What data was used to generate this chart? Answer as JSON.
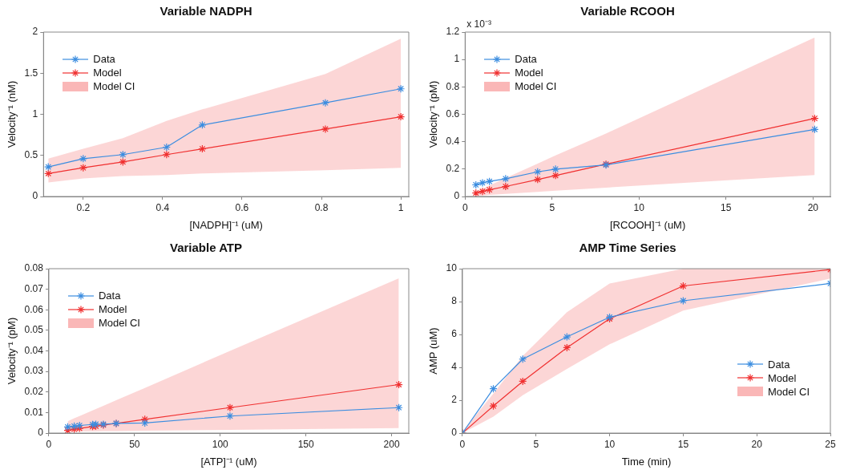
{
  "chart_data": [
    {
      "type": "line",
      "title": "Variable NADPH",
      "xlabel": "[NADPH]⁻¹ (uM)",
      "ylabel": "Velocity⁻¹ (nM)",
      "x": [
        0.112,
        0.2,
        0.3,
        0.41,
        0.5,
        0.81,
        1.0
      ],
      "xlim": [
        0.1,
        1.02
      ],
      "xticks": [
        0.2,
        0.4,
        0.6,
        0.8,
        1
      ],
      "ylim": [
        0,
        2
      ],
      "yticks": [
        0,
        0.5,
        1,
        1.5,
        2
      ],
      "legend": "top left",
      "marker": "cross",
      "annotations": [
        "Model CI"
      ],
      "series": [
        {
          "name": "Data",
          "color": "#3b8de0",
          "values": [
            0.36,
            0.46,
            0.51,
            0.6,
            0.87,
            1.14,
            1.31
          ]
        },
        {
          "name": "Model",
          "color": "#f03030",
          "values": [
            0.28,
            0.35,
            0.42,
            0.51,
            0.58,
            0.82,
            0.97
          ],
          "lower": [
            0.17,
            0.22,
            0.25,
            0.26,
            0.28,
            0.32,
            0.35
          ],
          "upper": [
            0.46,
            0.58,
            0.71,
            0.92,
            1.06,
            1.49,
            1.92
          ]
        }
      ]
    },
    {
      "type": "line",
      "title": "Variable RCOOH",
      "xlabel": "[RCOOH]⁻¹ (uM)",
      "ylabel": "Velocity⁻¹ (pM)",
      "x": [
        0.62,
        1.0,
        1.4,
        2.33,
        4.17,
        5.2,
        8.1,
        20.1
      ],
      "xlim": [
        0,
        21
      ],
      "xticks": [
        0,
        5,
        10,
        15,
        20
      ],
      "ylim": [
        0,
        1.2
      ],
      "yticks": [
        0,
        0.2,
        0.4,
        0.6,
        0.8,
        1,
        1.2
      ],
      "legend": "top left",
      "marker": "cross",
      "annotations": [
        "x 10⁻³",
        "Model CI"
      ],
      "series": [
        {
          "name": "Data",
          "color": "#3b8de0",
          "values": [
            0.085,
            0.1,
            0.11,
            0.13,
            0.18,
            0.2,
            0.23,
            0.49
          ]
        },
        {
          "name": "Model",
          "color": "#f03030",
          "values": [
            0.026,
            0.037,
            0.049,
            0.073,
            0.124,
            0.153,
            0.236,
            0.57
          ],
          "lower": [
            0.005,
            0.008,
            0.011,
            0.019,
            0.034,
            0.042,
            0.065,
            0.157
          ],
          "upper": [
            0.035,
            0.057,
            0.08,
            0.135,
            0.24,
            0.3,
            0.46,
            1.16
          ]
        }
      ]
    },
    {
      "type": "line",
      "title": "Variable ATP",
      "xlabel": "[ATP]⁻¹ (uM)",
      "ylabel": "Velocity⁻¹ (pM)",
      "x": [
        11,
        14.8,
        17.9,
        25.5,
        27.4,
        31.8,
        39.3,
        56,
        105.7,
        204.2
      ],
      "xlim": [
        0,
        210
      ],
      "xticks": [
        0,
        50,
        100,
        150,
        200
      ],
      "ylim": [
        0,
        0.08
      ],
      "yticks": [
        0,
        0.01,
        0.02,
        0.03,
        0.04,
        0.05,
        0.06,
        0.07,
        0.08
      ],
      "legend": "top left",
      "marker": "cross",
      "annotations": [
        "Model CI"
      ],
      "series": [
        {
          "name": "Data",
          "color": "#3b8de0",
          "values": [
            0.003,
            0.0034,
            0.0037,
            0.0042,
            0.0043,
            0.0043,
            0.0047,
            0.0049,
            0.0083,
            0.0124
          ]
        },
        {
          "name": "Model",
          "color": "#f03030",
          "values": [
            0.0013,
            0.0019,
            0.0023,
            0.0032,
            0.0034,
            0.0039,
            0.0047,
            0.0067,
            0.0124,
            0.0236
          ],
          "lower": [
            0.0008,
            0.0008,
            0.0009,
            0.0009,
            0.0009,
            0.001,
            0.001,
            0.0012,
            0.0016,
            0.0024
          ],
          "upper": [
            0.0058,
            0.0072,
            0.0083,
            0.011,
            0.0117,
            0.0133,
            0.016,
            0.022,
            0.04,
            0.0753
          ]
        }
      ]
    },
    {
      "type": "line",
      "title": "AMP Time Series",
      "xlabel": "Time (min)",
      "ylabel": "AMP (uM)",
      "x": [
        0,
        2.1,
        4.1,
        7.1,
        10,
        15,
        25
      ],
      "xlim": [
        0,
        25
      ],
      "xticks": [
        0,
        5,
        10,
        15,
        20,
        25
      ],
      "ylim": [
        0,
        10
      ],
      "yticks": [
        0,
        2,
        4,
        6,
        8,
        10
      ],
      "legend": "right",
      "marker": "cross",
      "annotations": [
        "Model CI"
      ],
      "series": [
        {
          "name": "Data",
          "color": "#3b8de0",
          "values": [
            0,
            2.7,
            4.5,
            5.85,
            7.05,
            8.05,
            9.1
          ]
        },
        {
          "name": "Model",
          "color": "#f03030",
          "values": [
            0,
            1.65,
            3.15,
            5.2,
            6.95,
            8.95,
            9.95
          ],
          "lower": [
            0,
            1.0,
            2.3,
            3.9,
            5.4,
            7.45,
            9.4
          ],
          "upper": [
            0.1,
            2.4,
            4.7,
            7.35,
            9.1,
            10,
            10
          ]
        }
      ]
    }
  ]
}
